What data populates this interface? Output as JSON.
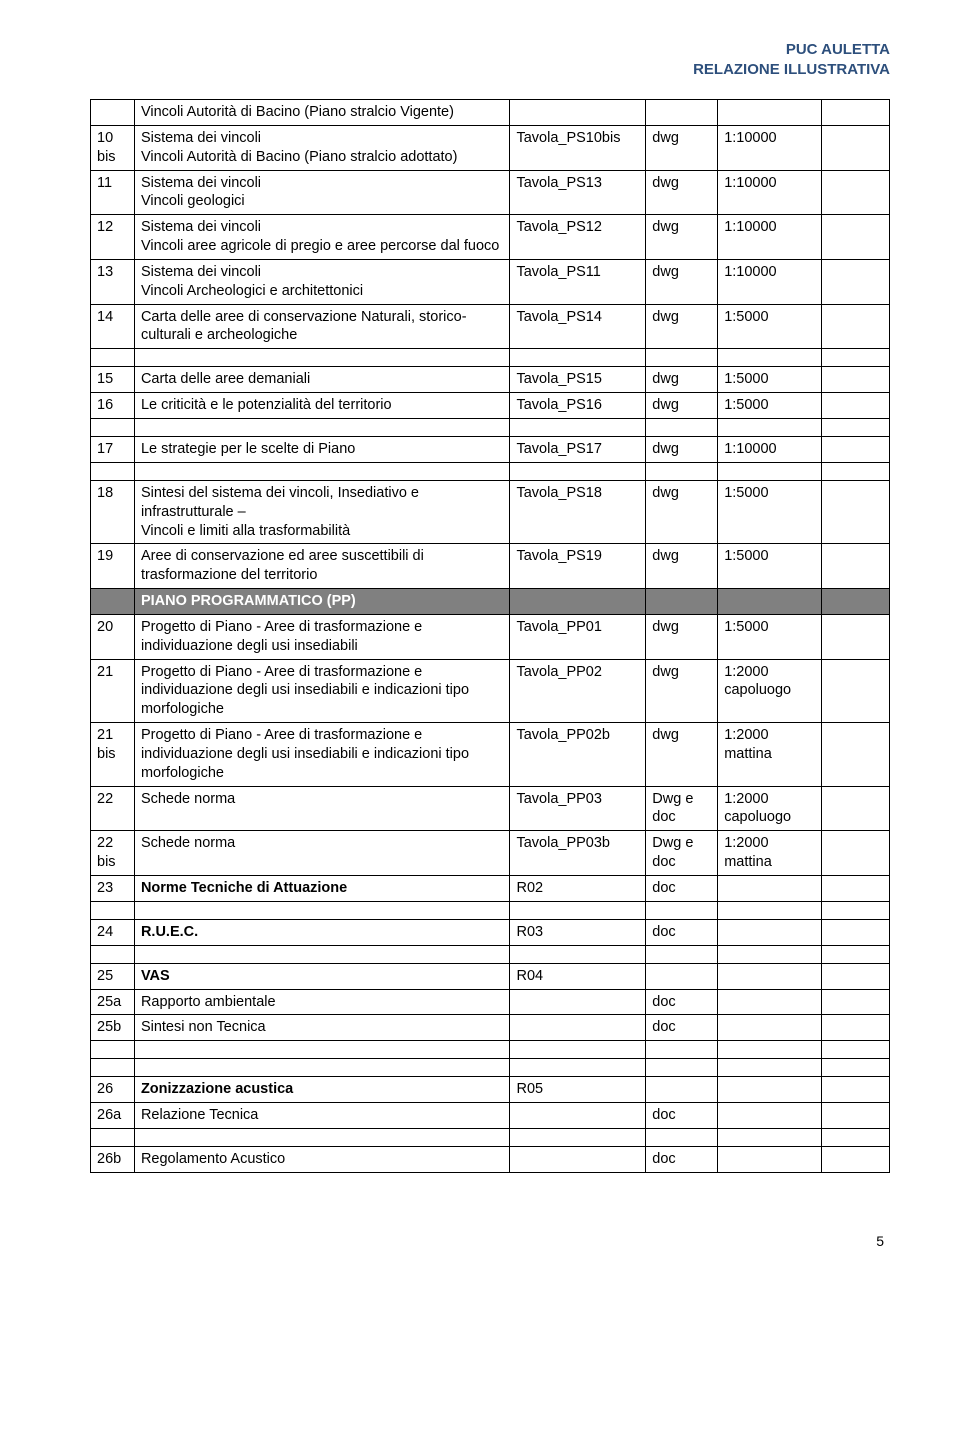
{
  "header": {
    "line1": "PUC AULETTA",
    "line2": "RELAZIONE ILLUSTRATIVA"
  },
  "rows": [
    {
      "n": "",
      "desc": "Vincoli Autorità di Bacino (Piano stralcio Vigente)",
      "file": "",
      "fmt": "",
      "scale": "",
      "note": ""
    },
    {
      "n": "10 bis",
      "desc": "Sistema dei vincoli\nVincoli Autorità di Bacino (Piano stralcio adottato)",
      "file": "Tavola_PS10bis",
      "fmt": "dwg",
      "scale": "1:10000",
      "note": ""
    },
    {
      "n": "11",
      "desc": "Sistema dei vincoli\nVincoli geologici",
      "file": "Tavola_PS13",
      "fmt": "dwg",
      "scale": "1:10000",
      "note": ""
    },
    {
      "n": "12",
      "desc": "Sistema dei vincoli\nVincoli aree agricole di pregio e aree percorse dal fuoco",
      "file": "Tavola_PS12",
      "fmt": "dwg",
      "scale": "1:10000",
      "note": ""
    },
    {
      "n": "13",
      "desc": "Sistema dei vincoli\nVincoli Archeologici e architettonici",
      "file": "Tavola_PS11",
      "fmt": "dwg",
      "scale": "1:10000",
      "note": ""
    },
    {
      "n": "14",
      "desc": "Carta delle aree di conservazione Naturali, storico-culturali e archeologiche",
      "file": "Tavola_PS14",
      "fmt": "dwg",
      "scale": "1:5000",
      "note": ""
    },
    {
      "type": "gap"
    },
    {
      "n": "15",
      "desc": "Carta delle aree demaniali",
      "file": "Tavola_PS15",
      "fmt": "dwg",
      "scale": "1:5000",
      "note": ""
    },
    {
      "n": "16",
      "desc": "Le criticità e le potenzialità del territorio",
      "file": "Tavola_PS16",
      "fmt": "dwg",
      "scale": "1:5000",
      "note": ""
    },
    {
      "type": "gap"
    },
    {
      "n": "17",
      "desc": "Le strategie per le scelte di Piano",
      "file": "Tavola_PS17",
      "fmt": "dwg",
      "scale": "1:10000",
      "note": ""
    },
    {
      "type": "gap"
    },
    {
      "n": "18",
      "desc": "Sintesi del sistema dei vincoli, Insediativo e infrastrutturale –\nVincoli e limiti alla trasformabilità",
      "file": "Tavola_PS18",
      "fmt": "dwg",
      "scale": "1:5000",
      "note": ""
    },
    {
      "n": "19",
      "desc": "Aree di conservazione ed aree suscettibili di trasformazione  del territorio",
      "file": "Tavola_PS19",
      "fmt": "dwg",
      "scale": "1:5000",
      "note": ""
    },
    {
      "type": "section",
      "desc": "PIANO PROGRAMMATICO (PP)"
    },
    {
      "n": "20",
      "desc": "Progetto di Piano - Aree di trasformazione e individuazione degli usi insediabili",
      "file": "Tavola_PP01",
      "fmt": "dwg",
      "scale": "1:5000",
      "note": ""
    },
    {
      "n": "21",
      "desc": "Progetto di Piano - Aree di trasformazione e individuazione degli usi insediabili e indicazioni tipo morfologiche",
      "file": "Tavola_PP02",
      "fmt": "dwg",
      "scale": "1:2000 capoluogo",
      "note": ""
    },
    {
      "n": "21 bis",
      "desc": "Progetto di Piano - Aree di trasformazione e individuazione degli usi insediabili e indicazioni tipo morfologiche",
      "file": "Tavola_PP02b",
      "fmt": "dwg",
      "scale": "1:2000 mattina",
      "note": ""
    },
    {
      "n": "22",
      "desc": "Schede norma",
      "file": "Tavola_PP03",
      "fmt": "Dwg e doc",
      "scale": "1:2000 capoluogo",
      "note": ""
    },
    {
      "n": "22 bis",
      "desc": "Schede norma",
      "file": "Tavola_PP03b",
      "fmt": "Dwg e doc",
      "scale": "1:2000 mattina",
      "note": ""
    },
    {
      "n": "23",
      "desc": "Norme Tecniche di Attuazione",
      "descBold": true,
      "file": "R02",
      "fmt": "doc",
      "scale": "",
      "note": ""
    },
    {
      "type": "gap"
    },
    {
      "n": "24",
      "desc": "R.U.E.C.",
      "descBold": true,
      "file": "R03",
      "fmt": "doc",
      "scale": "",
      "note": ""
    },
    {
      "type": "gap"
    },
    {
      "n": "25",
      "desc": "VAS",
      "descBold": true,
      "file": "R04",
      "fmt": "",
      "scale": "",
      "note": ""
    },
    {
      "n": "25a",
      "desc": "Rapporto ambientale",
      "file": "",
      "fmt": "doc",
      "scale": "",
      "note": ""
    },
    {
      "n": "25b",
      "desc": "Sintesi non Tecnica",
      "file": "",
      "fmt": "doc",
      "scale": "",
      "note": ""
    },
    {
      "type": "gap"
    },
    {
      "type": "gap"
    },
    {
      "n": "26",
      "desc": "Zonizzazione acustica",
      "descBold": true,
      "file": "R05",
      "fmt": "",
      "scale": "",
      "note": ""
    },
    {
      "n": "26a",
      "desc": "Relazione Tecnica",
      "file": "",
      "fmt": "doc",
      "scale": "",
      "note": ""
    },
    {
      "type": "gap"
    },
    {
      "n": "26b",
      "desc": "Regolamento Acustico",
      "file": "",
      "fmt": "doc",
      "scale": "",
      "note": ""
    }
  ],
  "footer": {
    "page": "5"
  }
}
